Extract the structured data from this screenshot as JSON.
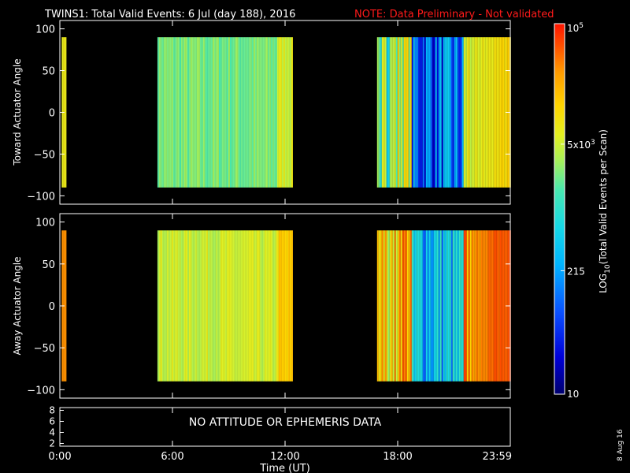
{
  "header": {
    "title": "TWINS1: Total Valid Events:  6 Jul (day 188), 2016",
    "note": "NOTE: Data Preliminary - Not validated"
  },
  "footer": {
    "date_stamp": "8 Aug 16"
  },
  "colors": {
    "background": "#000000",
    "text": "#ffffff",
    "note": "#ff1a1a",
    "colormap": [
      "#00006e",
      "#0000d8",
      "#0a50ff",
      "#00b4ff",
      "#16d8e6",
      "#48e8b0",
      "#a6f05a",
      "#e4f020",
      "#ffd400",
      "#ff9a00",
      "#ff5000",
      "#ff1400"
    ]
  },
  "chart_data": [
    {
      "type": "heatmap",
      "name": "toward",
      "ylabel": "Toward Actuator Angle",
      "ylim": [
        -110,
        110
      ],
      "yticks": [
        100,
        50,
        0,
        -50,
        -100
      ],
      "ytick_labels": [
        "100",
        "50",
        "0",
        "−50",
        "−100"
      ],
      "xlim": [
        0,
        24
      ],
      "data_bands_hours": [
        [
          0.1,
          0.3
        ],
        [
          5.2,
          12.4
        ],
        [
          16.9,
          24.0
        ]
      ],
      "data_y_range": [
        -90,
        90
      ],
      "colorbar_label": "LOG10(Total Valid Events per Scan)",
      "typical_level_by_band": [
        "yellow-green (~5x10^3)",
        "cyan-green (~500-2000)",
        "blue (~100-300) to yellow (~5x10^3)"
      ]
    },
    {
      "type": "heatmap",
      "name": "away",
      "ylabel": "Away Actuator Angle",
      "ylim": [
        -110,
        110
      ],
      "yticks": [
        100,
        50,
        0,
        -50,
        -100
      ],
      "ytick_labels": [
        "100",
        "50",
        "0",
        "−50",
        "−100"
      ],
      "xlim": [
        0,
        24
      ],
      "data_bands_hours": [
        [
          0.1,
          0.3
        ],
        [
          5.2,
          12.4
        ],
        [
          16.9,
          24.0
        ]
      ],
      "data_y_range": [
        -90,
        90
      ],
      "colorbar_label": "LOG10(Total Valid Events per Scan)",
      "typical_level_by_band": [
        "orange (~1x10^4)",
        "green-yellow (~2x10^3)",
        "blue (~200) to orange (~1x10^4)"
      ]
    },
    {
      "type": "line",
      "name": "attitude",
      "ylim": [
        1.5,
        8.5
      ],
      "yticks": [
        8,
        6,
        4,
        2
      ],
      "ytick_labels": [
        "8",
        "6",
        "4",
        "2"
      ],
      "annotation": "NO ATTITUDE OR EPHEMERIS DATA",
      "xlabel": "Time (UT)",
      "xticks": [
        0,
        6,
        12,
        18,
        24
      ],
      "xtick_labels": [
        "0:00",
        "6:00",
        "12:00",
        "18:00",
        "23:59"
      ]
    }
  ],
  "colorbar": {
    "scale": "log",
    "min": 10,
    "max": 100000,
    "tick_values": [
      100000,
      5000,
      215,
      10
    ],
    "tick_labels": [
      {
        "base": "10",
        "sup": "5"
      },
      {
        "base": "5x10",
        "sup": "3"
      },
      {
        "base": "215",
        "sup": ""
      },
      {
        "base": "10",
        "sup": ""
      }
    ],
    "label_pre": "LOG",
    "label_sub": "10",
    "label_post": "(Total Valid Events per Scan)"
  }
}
